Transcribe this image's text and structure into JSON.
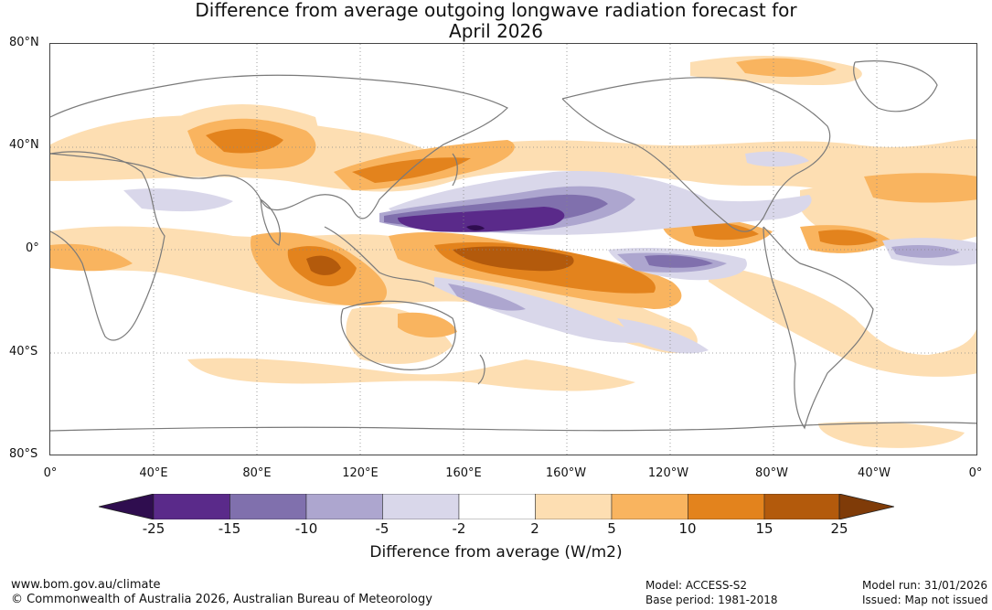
{
  "title": {
    "line1": "Difference from average outgoing longwave radiation forecast for",
    "line2": "April 2026"
  },
  "map": {
    "lat_labels": [
      "80°N",
      "40°N",
      "0°",
      "40°S",
      "80°S"
    ],
    "lon_labels": [
      "0°",
      "40°E",
      "80°E",
      "120°E",
      "160°E",
      "160°W",
      "120°W",
      "80°W",
      "40°W",
      "0°"
    ]
  },
  "colorbar": {
    "title": "Difference from average (W/m2)",
    "ticks": [
      "-25",
      "-15",
      "-10",
      "-5",
      "-2",
      "2",
      "5",
      "10",
      "15",
      "25"
    ],
    "colors": {
      "lt_-25": "#2f0d4f",
      "b_-25_-15": "#5a2a8a",
      "b_-15_-10": "#8070ad",
      "b_-10_-5": "#ada6cf",
      "b_-5_-2": "#d9d7ea",
      "b_-2_2": "#ffffff",
      "b_2_5": "#fddeb2",
      "b_5_10": "#f9b45f",
      "b_10_15": "#e3831d",
      "b_15_25": "#b35a0c",
      "gt_25": "#7f3b08"
    }
  },
  "footer": {
    "url": "www.bom.gov.au/climate",
    "copyright": "© Commonwealth of Australia 2026, Australian Bureau of Meteorology",
    "model": "Model: ACCESS-S2",
    "base_period": "Base period: 1981-2018",
    "model_run": "Model run: 31/01/2026",
    "issued": "Issued: Map not issued"
  }
}
